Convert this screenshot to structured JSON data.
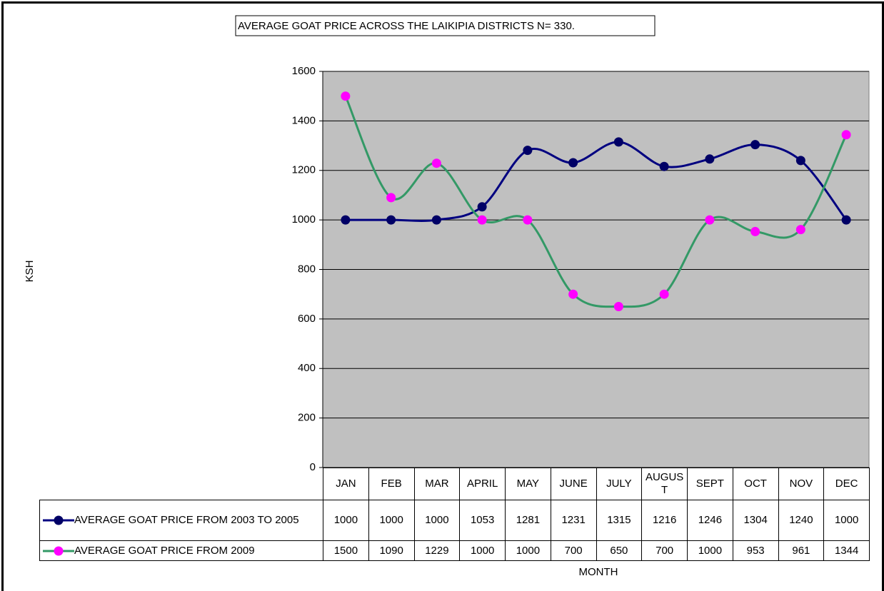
{
  "chart_data": {
    "type": "line",
    "title": "AVERAGE GOAT PRICE ACROSS THE LAIKIPIA DISTRICTS  N= 330.",
    "x_label": "MONTH",
    "y_label": "KSH",
    "categories": [
      "JAN",
      "FEB",
      "MAR",
      "APRIL",
      "MAY",
      "JUNE",
      "JULY",
      "AUGUST",
      "SEPT",
      "OCT",
      "NOV",
      "DEC"
    ],
    "series": [
      {
        "name": "AVERAGE GOAT PRICE FROM 2003 TO 2005",
        "color": "#000080",
        "marker_color": "#000066",
        "values": [
          1000,
          1000,
          1000,
          1053,
          1281,
          1231,
          1315,
          1216,
          1246,
          1304,
          1240,
          1000
        ]
      },
      {
        "name": "AVERAGE GOAT PRICE FROM 2009",
        "color": "#339966",
        "marker_color": "#ff00ff",
        "values": [
          1500,
          1090,
          1229,
          1000,
          1000,
          700,
          650,
          700,
          1000,
          953,
          961,
          1344
        ]
      }
    ],
    "ylim": [
      0,
      1600
    ],
    "yticks": [
      0,
      200,
      400,
      600,
      800,
      1000,
      1200,
      1400,
      1600
    ],
    "grid": true,
    "smooth": true,
    "plot_background": "#c0c0c0",
    "data_table": true
  }
}
